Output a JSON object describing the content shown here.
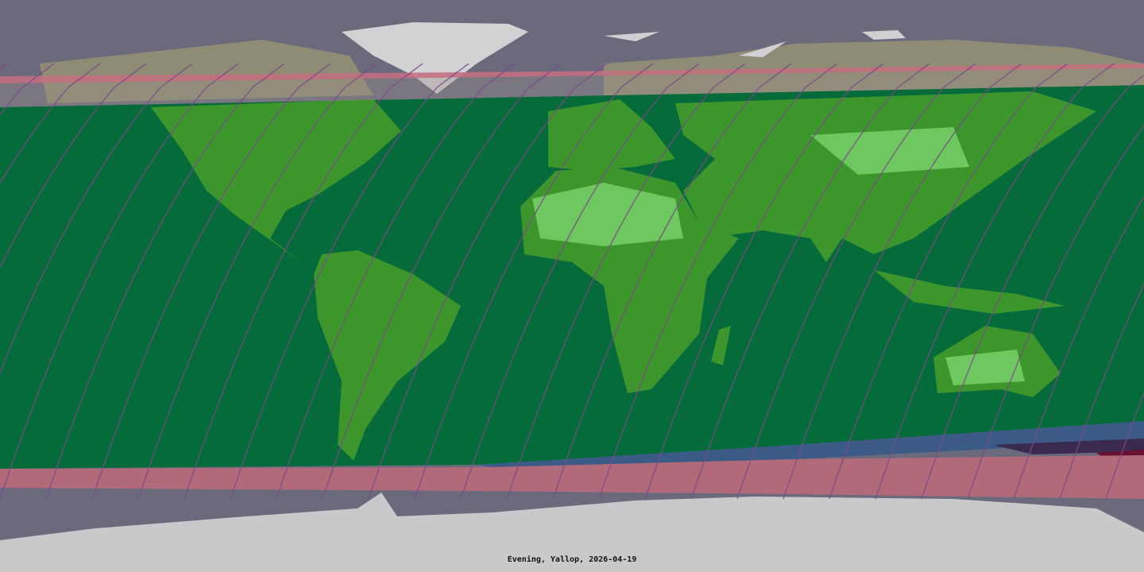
{
  "map": {
    "caption": "Evening, Yallop, 2026-04-19",
    "colors": {
      "ocean": "#6b6a7c",
      "zone_green": "#056b3a",
      "zone_blue": "#3b5a86",
      "zone_pink": "#b06a7a",
      "zone_dark_red": "#6a1030",
      "ice": "#d4d4d8",
      "land": "#8a8a70",
      "land_green": "#3f9a30",
      "contour_line": "#7a4a8a"
    }
  }
}
